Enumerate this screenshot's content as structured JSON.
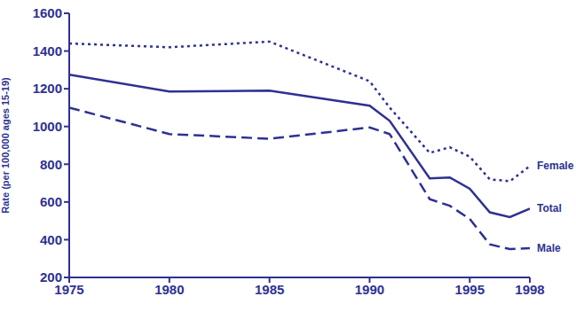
{
  "chart_data": {
    "type": "line",
    "y_label": "Rate (per 100,000 ages 15-19)",
    "x": [
      1975,
      1980,
      1985,
      1990,
      1991,
      1993,
      1994,
      1995,
      1996,
      1997,
      1998
    ],
    "series": [
      {
        "name": "Female",
        "color": "#2e3192",
        "line_style": "dotted",
        "values": [
          1440,
          1420,
          1450,
          1240,
          1100,
          860,
          890,
          840,
          720,
          710,
          790
        ]
      },
      {
        "name": "Total",
        "color": "#2e3192",
        "line_style": "solid",
        "values": [
          1275,
          1185,
          1190,
          1110,
          1030,
          725,
          730,
          670,
          545,
          520,
          565
        ]
      },
      {
        "name": "Male",
        "color": "#2e3192",
        "line_style": "dashed",
        "values": [
          1100,
          960,
          935,
          995,
          960,
          615,
          580,
          510,
          375,
          350,
          355
        ]
      }
    ],
    "xlim": [
      1975,
      1998
    ],
    "xticks": [
      1975,
      1980,
      1985,
      1990,
      1995,
      1998
    ],
    "ylim": [
      200,
      1600
    ],
    "yticks": [
      200,
      400,
      600,
      800,
      1000,
      1200,
      1400,
      1600
    ],
    "grid": false
  }
}
